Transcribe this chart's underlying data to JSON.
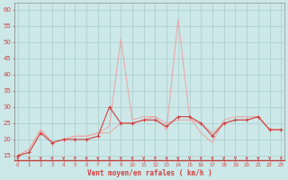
{
  "x": [
    0,
    1,
    2,
    3,
    4,
    5,
    6,
    7,
    8,
    9,
    10,
    11,
    12,
    13,
    14,
    15,
    16,
    17,
    18,
    19,
    20,
    21,
    22,
    23
  ],
  "wind_avg": [
    15,
    17,
    23,
    19,
    20,
    21,
    21,
    22,
    22,
    25,
    25,
    26,
    27,
    25,
    26,
    26,
    25,
    22,
    25,
    26,
    26,
    27,
    23,
    23
  ],
  "wind_gust": [
    15,
    17,
    23,
    19,
    20,
    21,
    21,
    22,
    24,
    51,
    26,
    27,
    27,
    23,
    57,
    27,
    22,
    19,
    26,
    27,
    27,
    27,
    23,
    23
  ],
  "wind_instant": [
    15,
    16,
    22,
    19,
    20,
    20,
    20,
    21,
    30,
    25,
    25,
    26,
    26,
    24,
    27,
    27,
    25,
    21,
    25,
    26,
    26,
    27,
    23,
    23
  ],
  "background_color": "#cce8e8",
  "grid_color": "#aacccc",
  "line_color_light": "#f0a0a0",
  "line_color_dark": "#d04040",
  "marker_color": "#d04040",
  "xlabel": "Vent moyen/en rafales ( km/h )",
  "yticks": [
    15,
    20,
    25,
    30,
    35,
    40,
    45,
    50,
    55,
    60
  ],
  "ylim": [
    13.5,
    62
  ],
  "xlim": [
    -0.3,
    23.3
  ]
}
